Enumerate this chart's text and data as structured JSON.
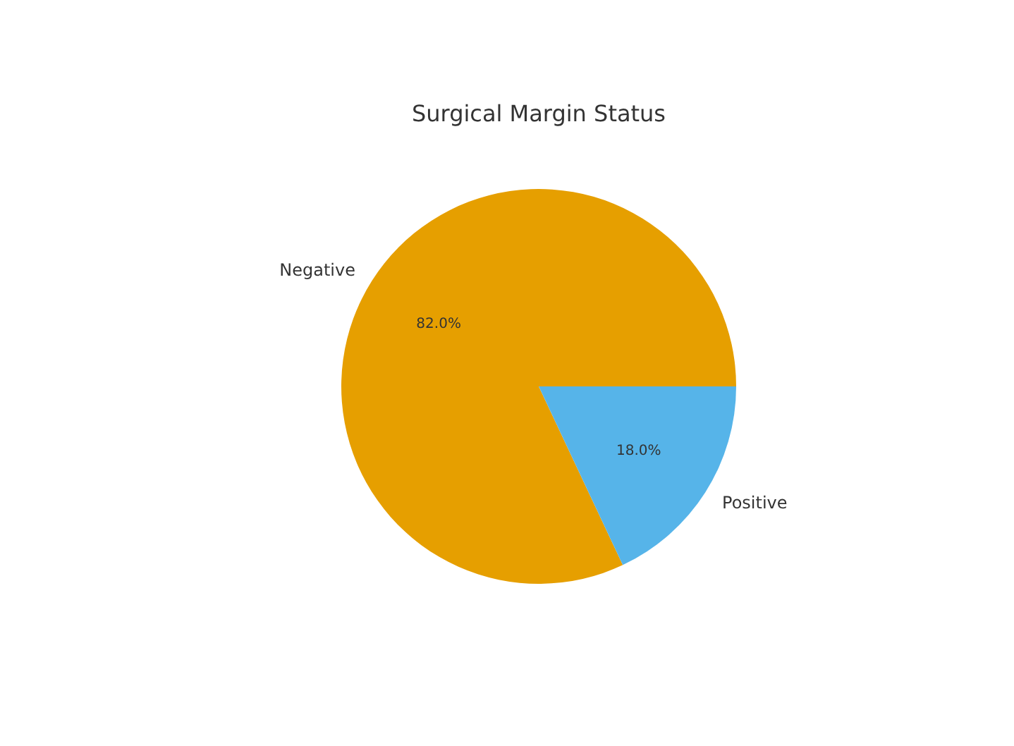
{
  "chart_data": {
    "type": "pie",
    "title": "Surgical Margin Status",
    "categories": [
      "Negative",
      "Positive"
    ],
    "values": [
      82.0,
      18.0
    ],
    "colors": [
      "#e69f00",
      "#56b4e9"
    ],
    "value_labels": [
      "82.0%",
      "18.0%"
    ]
  }
}
